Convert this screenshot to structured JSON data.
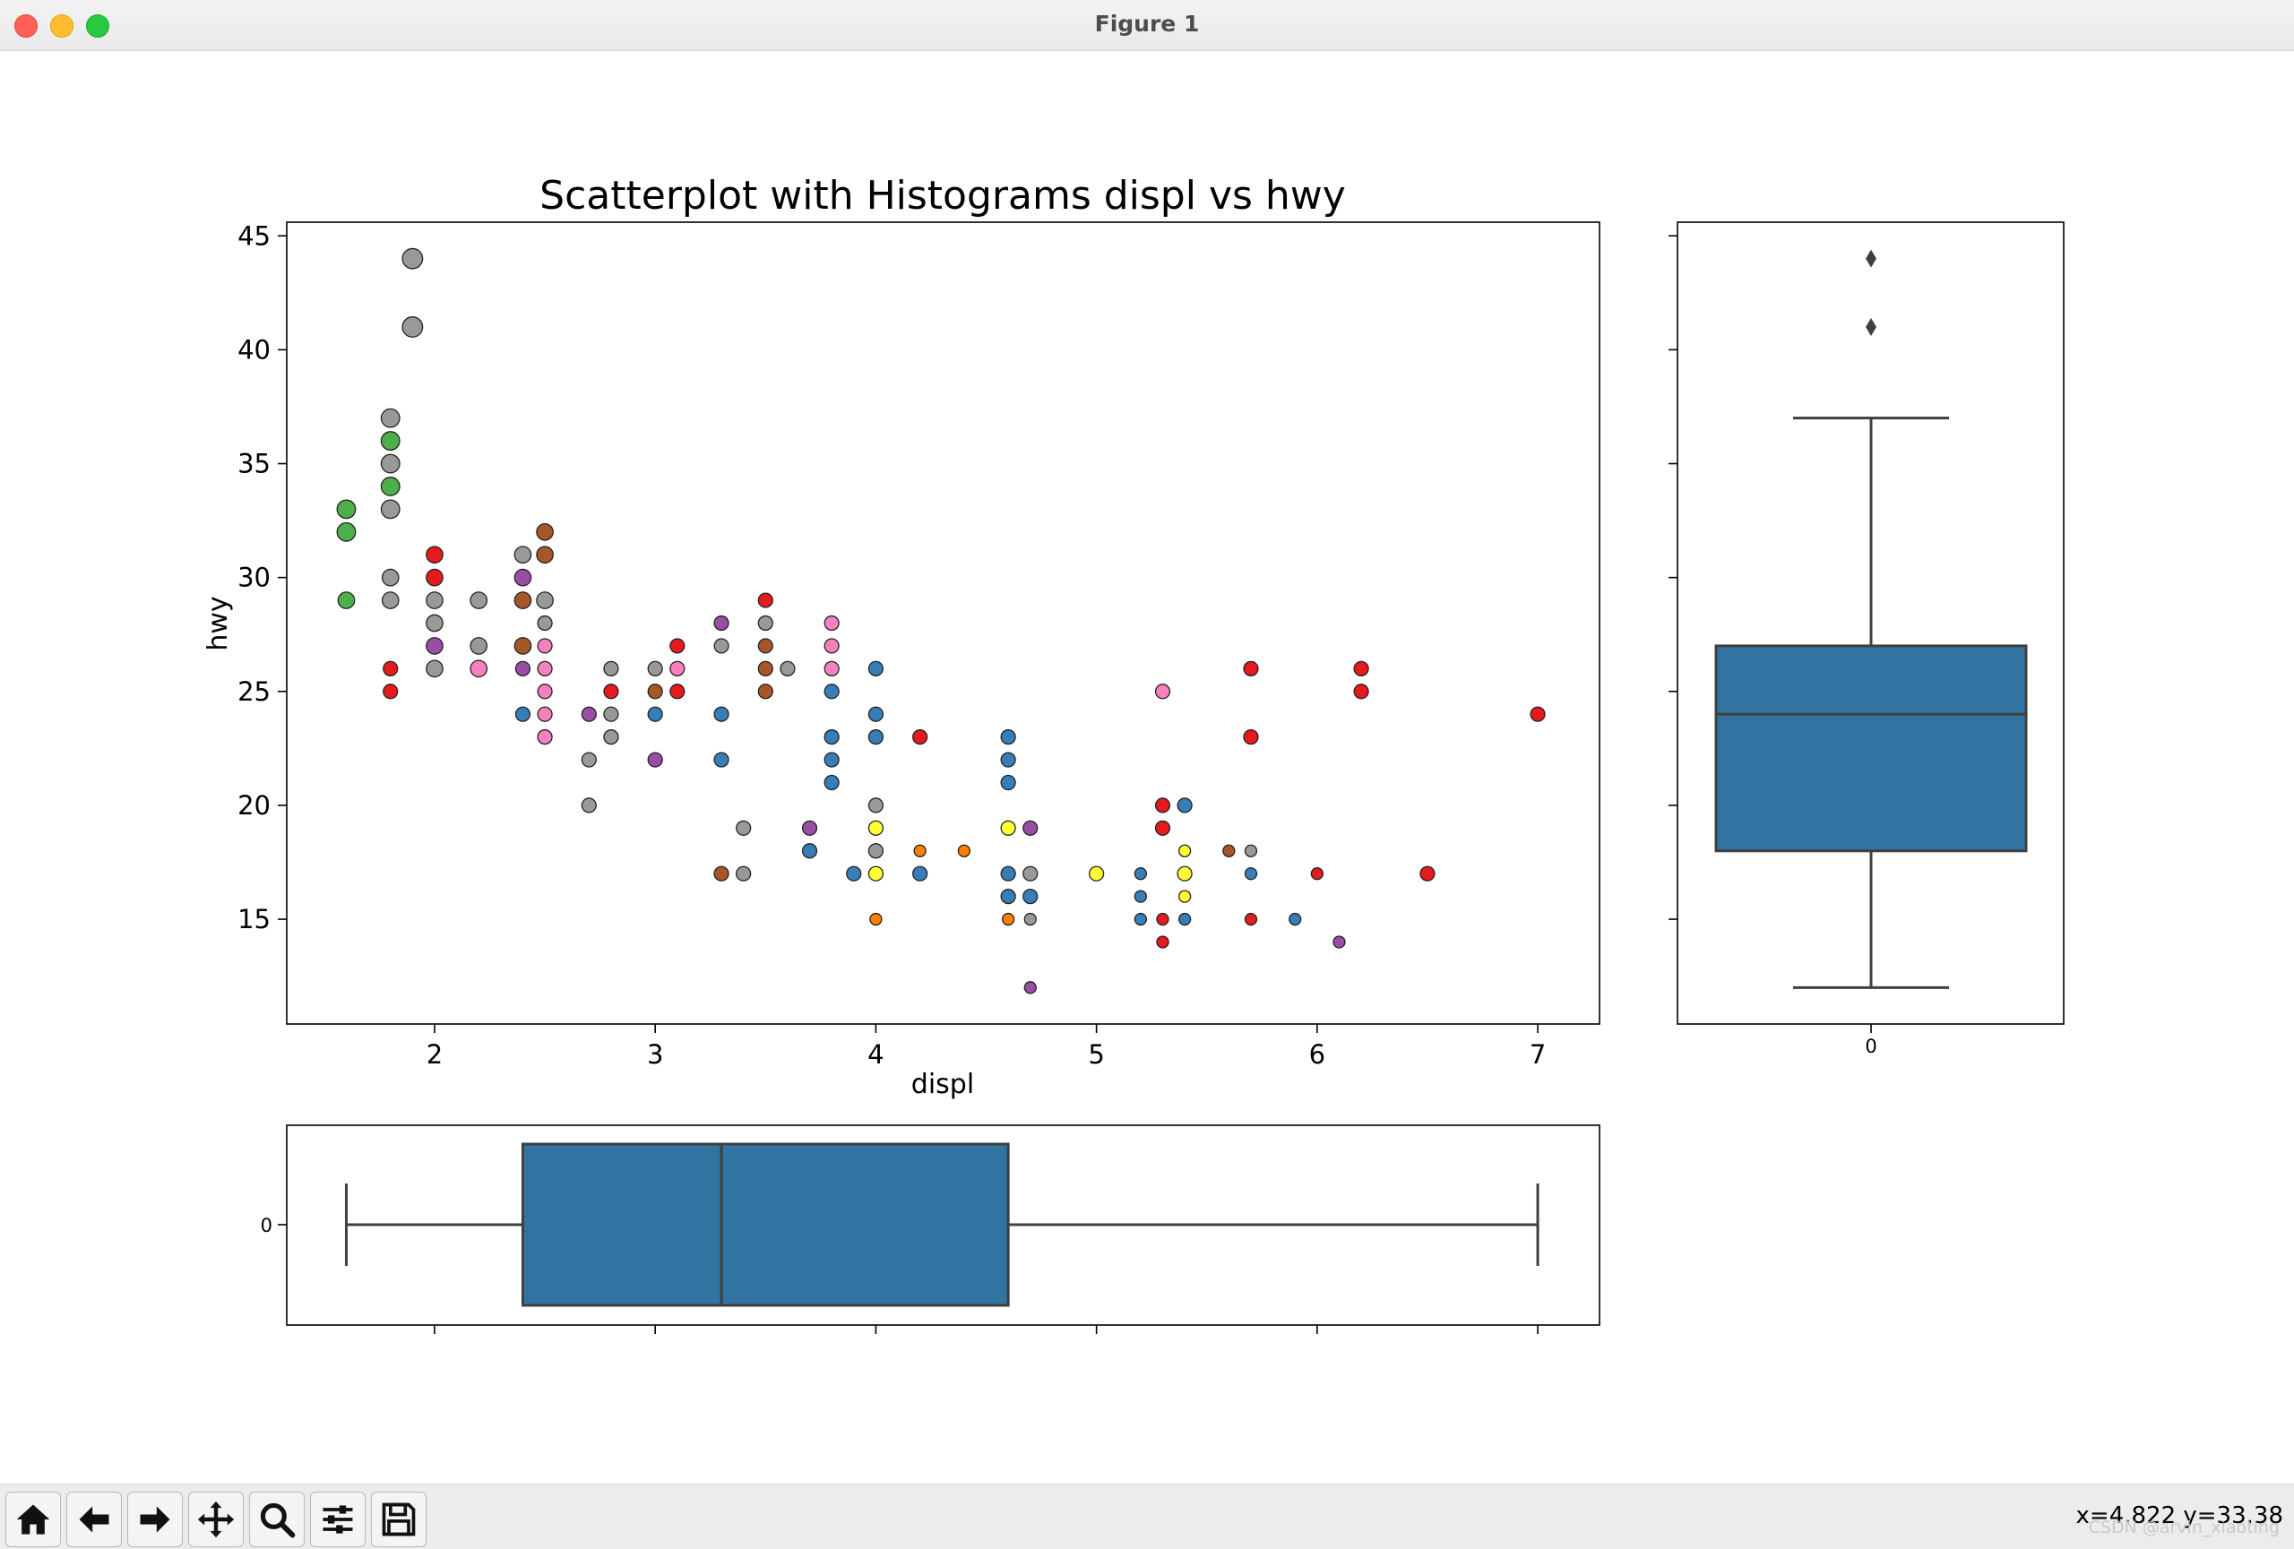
{
  "window": {
    "title": "Figure 1"
  },
  "chart_data": [
    {
      "type": "scatter",
      "title": "Scatterplot with Histograms displ vs hwy",
      "xlabel": "displ",
      "ylabel": "hwy",
      "xlim": [
        1.33,
        7.28
      ],
      "ylim": [
        10.4,
        45.6
      ],
      "xticks": [
        2,
        3,
        4,
        5,
        6,
        7
      ],
      "yticks": [
        15,
        20,
        25,
        30,
        35,
        40,
        45
      ],
      "grid": false,
      "points": [
        {
          "x": 1.9,
          "y": 44,
          "c": "#999999",
          "s": 3
        },
        {
          "x": 1.9,
          "y": 41,
          "c": "#999999",
          "s": 3
        },
        {
          "x": 1.8,
          "y": 37,
          "c": "#999999",
          "s": 2.5
        },
        {
          "x": 1.8,
          "y": 36,
          "c": "#4daf4a",
          "s": 2.5
        },
        {
          "x": 1.8,
          "y": 35,
          "c": "#999999",
          "s": 2.5
        },
        {
          "x": 1.8,
          "y": 34,
          "c": "#4daf4a",
          "s": 2.5
        },
        {
          "x": 1.8,
          "y": 33,
          "c": "#999999",
          "s": 2.5
        },
        {
          "x": 1.6,
          "y": 33,
          "c": "#4daf4a",
          "s": 2.5
        },
        {
          "x": 1.6,
          "y": 32,
          "c": "#4daf4a",
          "s": 2.5
        },
        {
          "x": 1.6,
          "y": 29,
          "c": "#4daf4a",
          "s": 2
        },
        {
          "x": 1.8,
          "y": 30,
          "c": "#999999",
          "s": 2
        },
        {
          "x": 1.8,
          "y": 29,
          "c": "#999999",
          "s": 2
        },
        {
          "x": 1.8,
          "y": 26,
          "c": "#e41a1c",
          "s": 1.5
        },
        {
          "x": 1.8,
          "y": 25,
          "c": "#e41a1c",
          "s": 1.5
        },
        {
          "x": 2.0,
          "y": 31,
          "c": "#e41a1c",
          "s": 2
        },
        {
          "x": 2.0,
          "y": 30,
          "c": "#e41a1c",
          "s": 2
        },
        {
          "x": 2.0,
          "y": 29,
          "c": "#999999",
          "s": 2
        },
        {
          "x": 2.0,
          "y": 28,
          "c": "#999999",
          "s": 2
        },
        {
          "x": 2.0,
          "y": 27,
          "c": "#984ea3",
          "s": 2
        },
        {
          "x": 2.0,
          "y": 26,
          "c": "#999999",
          "s": 2
        },
        {
          "x": 2.2,
          "y": 29,
          "c": "#999999",
          "s": 2
        },
        {
          "x": 2.2,
          "y": 27,
          "c": "#999999",
          "s": 2
        },
        {
          "x": 2.2,
          "y": 26,
          "c": "#f781bf",
          "s": 2
        },
        {
          "x": 2.4,
          "y": 31,
          "c": "#999999",
          "s": 2
        },
        {
          "x": 2.4,
          "y": 30,
          "c": "#984ea3",
          "s": 2
        },
        {
          "x": 2.4,
          "y": 29,
          "c": "#a65628",
          "s": 2
        },
        {
          "x": 2.4,
          "y": 27,
          "c": "#a65628",
          "s": 2
        },
        {
          "x": 2.4,
          "y": 26,
          "c": "#984ea3",
          "s": 1.5
        },
        {
          "x": 2.4,
          "y": 24,
          "c": "#377eb8",
          "s": 1.5
        },
        {
          "x": 2.5,
          "y": 32,
          "c": "#a65628",
          "s": 2
        },
        {
          "x": 2.5,
          "y": 31,
          "c": "#a65628",
          "s": 2
        },
        {
          "x": 2.5,
          "y": 29,
          "c": "#999999",
          "s": 2
        },
        {
          "x": 2.5,
          "y": 28,
          "c": "#999999",
          "s": 1.5
        },
        {
          "x": 2.5,
          "y": 27,
          "c": "#f781bf",
          "s": 1.5
        },
        {
          "x": 2.5,
          "y": 26,
          "c": "#f781bf",
          "s": 1.5
        },
        {
          "x": 2.5,
          "y": 25,
          "c": "#f781bf",
          "s": 1.5
        },
        {
          "x": 2.5,
          "y": 24,
          "c": "#f781bf",
          "s": 1.5
        },
        {
          "x": 2.5,
          "y": 23,
          "c": "#f781bf",
          "s": 1.5
        },
        {
          "x": 2.7,
          "y": 24,
          "c": "#984ea3",
          "s": 1.5
        },
        {
          "x": 2.7,
          "y": 22,
          "c": "#999999",
          "s": 1.5
        },
        {
          "x": 2.7,
          "y": 20,
          "c": "#999999",
          "s": 1.5
        },
        {
          "x": 2.8,
          "y": 26,
          "c": "#999999",
          "s": 1.5
        },
        {
          "x": 2.8,
          "y": 25,
          "c": "#e41a1c",
          "s": 1.5
        },
        {
          "x": 2.8,
          "y": 24,
          "c": "#999999",
          "s": 1.5
        },
        {
          "x": 2.8,
          "y": 23,
          "c": "#999999",
          "s": 1.5
        },
        {
          "x": 3.0,
          "y": 26,
          "c": "#999999",
          "s": 1.5
        },
        {
          "x": 3.0,
          "y": 25,
          "c": "#a65628",
          "s": 1.5
        },
        {
          "x": 3.0,
          "y": 24,
          "c": "#377eb8",
          "s": 1.5
        },
        {
          "x": 3.0,
          "y": 22,
          "c": "#984ea3",
          "s": 1.5
        },
        {
          "x": 3.1,
          "y": 27,
          "c": "#e41a1c",
          "s": 1.5
        },
        {
          "x": 3.1,
          "y": 26,
          "c": "#f781bf",
          "s": 1.5
        },
        {
          "x": 3.1,
          "y": 25,
          "c": "#e41a1c",
          "s": 1.5
        },
        {
          "x": 3.3,
          "y": 28,
          "c": "#984ea3",
          "s": 1.5
        },
        {
          "x": 3.3,
          "y": 27,
          "c": "#999999",
          "s": 1.5
        },
        {
          "x": 3.3,
          "y": 24,
          "c": "#377eb8",
          "s": 1.5
        },
        {
          "x": 3.3,
          "y": 22,
          "c": "#377eb8",
          "s": 1.5
        },
        {
          "x": 3.3,
          "y": 17,
          "c": "#a65628",
          "s": 1.5
        },
        {
          "x": 3.4,
          "y": 19,
          "c": "#999999",
          "s": 1.5
        },
        {
          "x": 3.4,
          "y": 17,
          "c": "#999999",
          "s": 1.5
        },
        {
          "x": 3.5,
          "y": 29,
          "c": "#e41a1c",
          "s": 1.5
        },
        {
          "x": 3.5,
          "y": 28,
          "c": "#999999",
          "s": 1.5
        },
        {
          "x": 3.5,
          "y": 27,
          "c": "#a65628",
          "s": 1.5
        },
        {
          "x": 3.5,
          "y": 26,
          "c": "#a65628",
          "s": 1.5
        },
        {
          "x": 3.5,
          "y": 25,
          "c": "#a65628",
          "s": 1.5
        },
        {
          "x": 3.6,
          "y": 26,
          "c": "#999999",
          "s": 1.5
        },
        {
          "x": 3.7,
          "y": 19,
          "c": "#984ea3",
          "s": 1.5
        },
        {
          "x": 3.7,
          "y": 18,
          "c": "#377eb8",
          "s": 1.5
        },
        {
          "x": 3.8,
          "y": 28,
          "c": "#f781bf",
          "s": 1.5
        },
        {
          "x": 3.8,
          "y": 27,
          "c": "#f781bf",
          "s": 1.5
        },
        {
          "x": 3.8,
          "y": 26,
          "c": "#f781bf",
          "s": 1.5
        },
        {
          "x": 3.8,
          "y": 25,
          "c": "#377eb8",
          "s": 1.5
        },
        {
          "x": 3.8,
          "y": 23,
          "c": "#377eb8",
          "s": 1.5
        },
        {
          "x": 3.8,
          "y": 22,
          "c": "#377eb8",
          "s": 1.5
        },
        {
          "x": 3.8,
          "y": 21,
          "c": "#377eb8",
          "s": 1.5
        },
        {
          "x": 3.9,
          "y": 17,
          "c": "#377eb8",
          "s": 1.5
        },
        {
          "x": 4.0,
          "y": 26,
          "c": "#377eb8",
          "s": 1.5
        },
        {
          "x": 4.0,
          "y": 24,
          "c": "#377eb8",
          "s": 1.5
        },
        {
          "x": 4.0,
          "y": 23,
          "c": "#377eb8",
          "s": 1.5
        },
        {
          "x": 4.0,
          "y": 20,
          "c": "#999999",
          "s": 1.5
        },
        {
          "x": 4.0,
          "y": 19,
          "c": "#ffff33",
          "s": 1.5
        },
        {
          "x": 4.0,
          "y": 18,
          "c": "#999999",
          "s": 1.5
        },
        {
          "x": 4.0,
          "y": 17,
          "c": "#ffff33",
          "s": 1.5
        },
        {
          "x": 4.0,
          "y": 15,
          "c": "#ff7f00",
          "s": 1
        },
        {
          "x": 4.2,
          "y": 23,
          "c": "#e41a1c",
          "s": 1.5
        },
        {
          "x": 4.2,
          "y": 18,
          "c": "#ff7f00",
          "s": 1
        },
        {
          "x": 4.2,
          "y": 17,
          "c": "#377eb8",
          "s": 1.5
        },
        {
          "x": 4.4,
          "y": 18,
          "c": "#ff7f00",
          "s": 1
        },
        {
          "x": 4.6,
          "y": 23,
          "c": "#377eb8",
          "s": 1.5
        },
        {
          "x": 4.6,
          "y": 22,
          "c": "#377eb8",
          "s": 1.5
        },
        {
          "x": 4.6,
          "y": 21,
          "c": "#377eb8",
          "s": 1.5
        },
        {
          "x": 4.6,
          "y": 19,
          "c": "#ffff33",
          "s": 1.5
        },
        {
          "x": 4.6,
          "y": 17,
          "c": "#377eb8",
          "s": 1.5
        },
        {
          "x": 4.6,
          "y": 16,
          "c": "#377eb8",
          "s": 1.5
        },
        {
          "x": 4.6,
          "y": 15,
          "c": "#ff7f00",
          "s": 1
        },
        {
          "x": 4.7,
          "y": 19,
          "c": "#984ea3",
          "s": 1.5
        },
        {
          "x": 4.7,
          "y": 17,
          "c": "#999999",
          "s": 1.5
        },
        {
          "x": 4.7,
          "y": 16,
          "c": "#377eb8",
          "s": 1.5
        },
        {
          "x": 4.7,
          "y": 15,
          "c": "#999999",
          "s": 1
        },
        {
          "x": 4.7,
          "y": 12,
          "c": "#984ea3",
          "s": 1
        },
        {
          "x": 5.0,
          "y": 17,
          "c": "#ffff33",
          "s": 1.5
        },
        {
          "x": 5.2,
          "y": 17,
          "c": "#377eb8",
          "s": 1
        },
        {
          "x": 5.2,
          "y": 16,
          "c": "#377eb8",
          "s": 1
        },
        {
          "x": 5.2,
          "y": 15,
          "c": "#377eb8",
          "s": 1
        },
        {
          "x": 5.3,
          "y": 25,
          "c": "#f781bf",
          "s": 1.5
        },
        {
          "x": 5.3,
          "y": 20,
          "c": "#e41a1c",
          "s": 1.5
        },
        {
          "x": 5.3,
          "y": 19,
          "c": "#e41a1c",
          "s": 1.5
        },
        {
          "x": 5.3,
          "y": 15,
          "c": "#e41a1c",
          "s": 1
        },
        {
          "x": 5.3,
          "y": 14,
          "c": "#e41a1c",
          "s": 1
        },
        {
          "x": 5.4,
          "y": 20,
          "c": "#377eb8",
          "s": 1.5
        },
        {
          "x": 5.4,
          "y": 18,
          "c": "#ffff33",
          "s": 1
        },
        {
          "x": 5.4,
          "y": 17,
          "c": "#ffff33",
          "s": 1.5
        },
        {
          "x": 5.4,
          "y": 16,
          "c": "#ffff33",
          "s": 1
        },
        {
          "x": 5.4,
          "y": 15,
          "c": "#377eb8",
          "s": 1
        },
        {
          "x": 5.6,
          "y": 18,
          "c": "#a65628",
          "s": 1
        },
        {
          "x": 5.7,
          "y": 26,
          "c": "#e41a1c",
          "s": 1.5
        },
        {
          "x": 5.7,
          "y": 23,
          "c": "#e41a1c",
          "s": 1.5
        },
        {
          "x": 5.7,
          "y": 18,
          "c": "#999999",
          "s": 1
        },
        {
          "x": 5.7,
          "y": 17,
          "c": "#377eb8",
          "s": 1
        },
        {
          "x": 5.7,
          "y": 15,
          "c": "#e41a1c",
          "s": 1
        },
        {
          "x": 5.9,
          "y": 15,
          "c": "#377eb8",
          "s": 1
        },
        {
          "x": 6.0,
          "y": 17,
          "c": "#e41a1c",
          "s": 1
        },
        {
          "x": 6.1,
          "y": 14,
          "c": "#984ea3",
          "s": 1
        },
        {
          "x": 6.2,
          "y": 26,
          "c": "#e41a1c",
          "s": 1.5
        },
        {
          "x": 6.2,
          "y": 25,
          "c": "#e41a1c",
          "s": 1.5
        },
        {
          "x": 6.5,
          "y": 17,
          "c": "#e41a1c",
          "s": 1.5
        },
        {
          "x": 7.0,
          "y": 24,
          "c": "#e41a1c",
          "s": 1.5
        }
      ]
    },
    {
      "type": "box",
      "orientation": "vertical",
      "variable": "hwy",
      "xtick_label": "0",
      "ylim": [
        10.4,
        45.6
      ],
      "whisker_low": 12,
      "q1": 18,
      "median": 24,
      "q3": 27,
      "whisker_high": 37,
      "outliers": [
        41,
        44
      ],
      "color": "#3274a1"
    },
    {
      "type": "box",
      "orientation": "horizontal",
      "variable": "displ",
      "ytick_label": "0",
      "xlim": [
        1.33,
        7.28
      ],
      "xticks": [
        2,
        3,
        4,
        5,
        6,
        7
      ],
      "whisker_low": 1.6,
      "q1": 2.4,
      "median": 3.3,
      "q3": 4.6,
      "whisker_high": 7.0,
      "outliers": [],
      "color": "#3274a1"
    }
  ],
  "toolbar": {
    "buttons": [
      "home-icon",
      "back-icon",
      "forward-icon",
      "pan-icon",
      "zoom-icon",
      "configure-icon",
      "save-icon"
    ],
    "coords": "x=4.822 y=33.38"
  },
  "watermark": "CSDN @arvin_xiaoting"
}
